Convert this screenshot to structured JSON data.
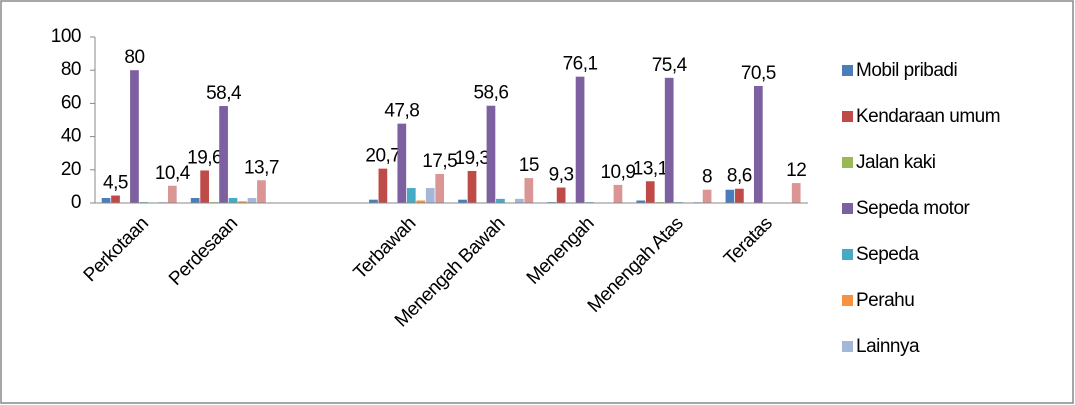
{
  "chart_data": {
    "type": "bar",
    "categories": [
      "Perkotaan",
      "Perdesaan",
      null,
      "Terbawah",
      "Menengah Bawah",
      "Menengah",
      "Menengah Atas",
      "Teratas"
    ],
    "series": [
      {
        "name": "Mobil pribadi",
        "color": "#4a7ebb",
        "values": [
          3,
          3,
          null,
          2,
          2,
          0.5,
          1.5,
          8
        ]
      },
      {
        "name": "Kendaraan umum",
        "color": "#be4b48",
        "values": [
          4.5,
          19.6,
          null,
          20.7,
          19.3,
          9.3,
          13.1,
          8.6
        ],
        "value_labels": [
          "4,5",
          "19,6",
          null,
          "20,7",
          "19,3",
          "9,3",
          "13,1",
          "8,6"
        ]
      },
      {
        "name": "Jalan kaki",
        "color": "#98b954",
        "values": [
          0,
          0.5,
          null,
          0.3,
          0.3,
          0,
          0.5,
          0
        ]
      },
      {
        "name": "Sepeda motor",
        "color": "#7d60a0",
        "values": [
          80,
          58.4,
          null,
          47.8,
          58.6,
          76.1,
          75.4,
          70.5
        ],
        "value_labels": [
          "80",
          "58,4",
          null,
          "47,8",
          "58,6",
          "76,1",
          "75,4",
          "70,5"
        ]
      },
      {
        "name": "Sepeda",
        "color": "#46aac5",
        "values": [
          0.5,
          3,
          null,
          9,
          2.5,
          0.5,
          0.5,
          0.3
        ]
      },
      {
        "name": "Perahu",
        "color": "#f69240",
        "values": [
          0,
          1,
          null,
          1.5,
          0,
          0,
          0,
          0
        ]
      },
      {
        "name": "Lainnya",
        "color": "#a5b6d9",
        "values": [
          0.5,
          3,
          null,
          9,
          2.5,
          0.3,
          0.5,
          0.3
        ]
      },
      {
        "name": null,
        "color": "#d99694",
        "values": [
          10.4,
          13.7,
          null,
          17.5,
          15,
          10.9,
          8,
          12
        ],
        "value_labels": [
          "10,4",
          "13,7",
          null,
          "17,5",
          "15",
          "10,9",
          "8",
          "12"
        ]
      }
    ],
    "ylim": [
      0,
      100
    ],
    "yticks": [
      0,
      20,
      40,
      60,
      80,
      100
    ],
    "grid": false,
    "legend": "right"
  }
}
